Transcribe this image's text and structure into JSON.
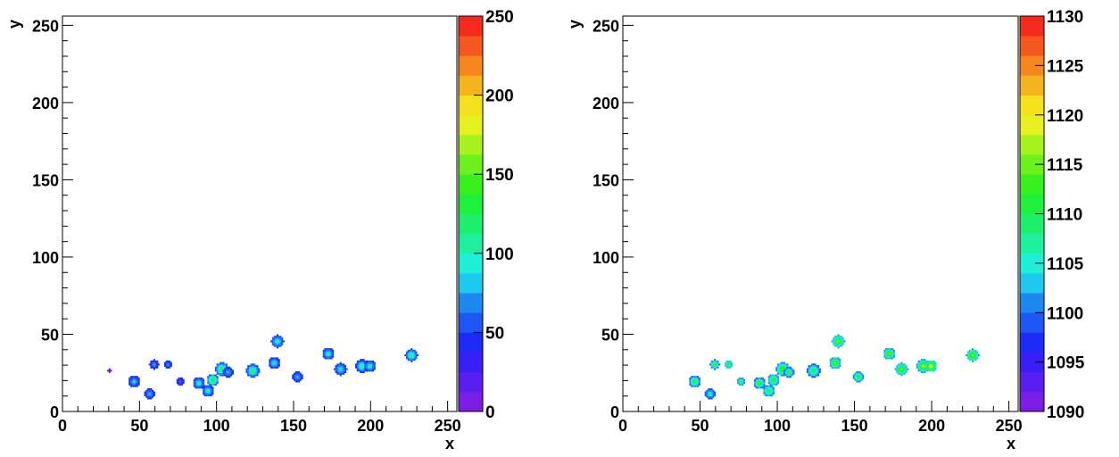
{
  "chart_data": [
    {
      "type": "heatmap",
      "xlabel": "x",
      "ylabel": "y",
      "xlim": [
        0,
        256
      ],
      "ylim": [
        0,
        256
      ],
      "x_ticks": [
        "0",
        "50",
        "100",
        "150",
        "200",
        "250"
      ],
      "y_ticks": [
        "0",
        "50",
        "100",
        "150",
        "200",
        "250"
      ],
      "zlim": [
        0,
        250
      ],
      "z_ticks": [
        "0",
        "50",
        "100",
        "150",
        "200",
        "250"
      ],
      "blobs": [
        {
          "x": 30,
          "y": 26,
          "r": 0.8,
          "z": 20
        },
        {
          "x": 46,
          "y": 19,
          "r": 3.5,
          "z": 95
        },
        {
          "x": 56,
          "y": 11,
          "r": 3.2,
          "z": 85
        },
        {
          "x": 59,
          "y": 30,
          "r": 2.8,
          "z": 80
        },
        {
          "x": 68,
          "y": 30,
          "r": 2.5,
          "z": 75
        },
        {
          "x": 76,
          "y": 19,
          "r": 2.3,
          "z": 70
        },
        {
          "x": 88,
          "y": 18,
          "r": 3.4,
          "z": 110
        },
        {
          "x": 94,
          "y": 13,
          "r": 3.6,
          "z": 105
        },
        {
          "x": 97,
          "y": 20,
          "r": 3.6,
          "z": 140
        },
        {
          "x": 103,
          "y": 27,
          "r": 4.2,
          "z": 130
        },
        {
          "x": 107,
          "y": 25,
          "r": 3.0,
          "z": 90
        },
        {
          "x": 123,
          "y": 26,
          "r": 4.0,
          "z": 125
        },
        {
          "x": 137,
          "y": 31,
          "r": 3.5,
          "z": 100
        },
        {
          "x": 139,
          "y": 45,
          "r": 3.8,
          "z": 110
        },
        {
          "x": 152,
          "y": 22,
          "r": 3.2,
          "z": 90
        },
        {
          "x": 172,
          "y": 37,
          "r": 3.5,
          "z": 105
        },
        {
          "x": 180,
          "y": 27,
          "r": 3.8,
          "z": 100
        },
        {
          "x": 194,
          "y": 29,
          "r": 4.0,
          "z": 110
        },
        {
          "x": 199,
          "y": 29,
          "r": 3.5,
          "z": 105
        },
        {
          "x": 226,
          "y": 36,
          "r": 3.8,
          "z": 115
        }
      ]
    },
    {
      "type": "heatmap",
      "xlabel": "x",
      "ylabel": "y",
      "xlim": [
        0,
        256
      ],
      "ylim": [
        0,
        256
      ],
      "x_ticks": [
        "0",
        "50",
        "100",
        "150",
        "200",
        "250"
      ],
      "y_ticks": [
        "0",
        "50",
        "100",
        "150",
        "200",
        "250"
      ],
      "zlim": [
        1090,
        1130
      ],
      "z_ticks": [
        "1090",
        "1095",
        "1100",
        "1105",
        "1110",
        "1115",
        "1120",
        "1125",
        "1130"
      ],
      "blobs": [
        {
          "x": 46,
          "y": 19,
          "r": 3.5,
          "z": 1112
        },
        {
          "x": 56,
          "y": 11,
          "r": 3.2,
          "z": 1108
        },
        {
          "x": 59,
          "y": 30,
          "r": 2.8,
          "z": 1113
        },
        {
          "x": 68,
          "y": 30,
          "r": 2.5,
          "z": 1113
        },
        {
          "x": 76,
          "y": 19,
          "r": 2.3,
          "z": 1113
        },
        {
          "x": 88,
          "y": 18,
          "r": 3.4,
          "z": 1114
        },
        {
          "x": 94,
          "y": 13,
          "r": 3.6,
          "z": 1113
        },
        {
          "x": 97,
          "y": 20,
          "r": 3.6,
          "z": 1114
        },
        {
          "x": 103,
          "y": 27,
          "r": 4.2,
          "z": 1115
        },
        {
          "x": 107,
          "y": 25,
          "r": 3.0,
          "z": 1113
        },
        {
          "x": 123,
          "y": 26,
          "r": 4.0,
          "z": 1112
        },
        {
          "x": 137,
          "y": 31,
          "r": 3.5,
          "z": 1116
        },
        {
          "x": 139,
          "y": 45,
          "r": 3.8,
          "z": 1116
        },
        {
          "x": 152,
          "y": 22,
          "r": 3.2,
          "z": 1113
        },
        {
          "x": 172,
          "y": 37,
          "r": 3.5,
          "z": 1116
        },
        {
          "x": 180,
          "y": 27,
          "r": 3.8,
          "z": 1116
        },
        {
          "x": 194,
          "y": 29,
          "r": 4.0,
          "z": 1118
        },
        {
          "x": 199,
          "y": 29,
          "r": 3.5,
          "z": 1121
        },
        {
          "x": 226,
          "y": 36,
          "r": 3.8,
          "z": 1118
        }
      ]
    }
  ]
}
